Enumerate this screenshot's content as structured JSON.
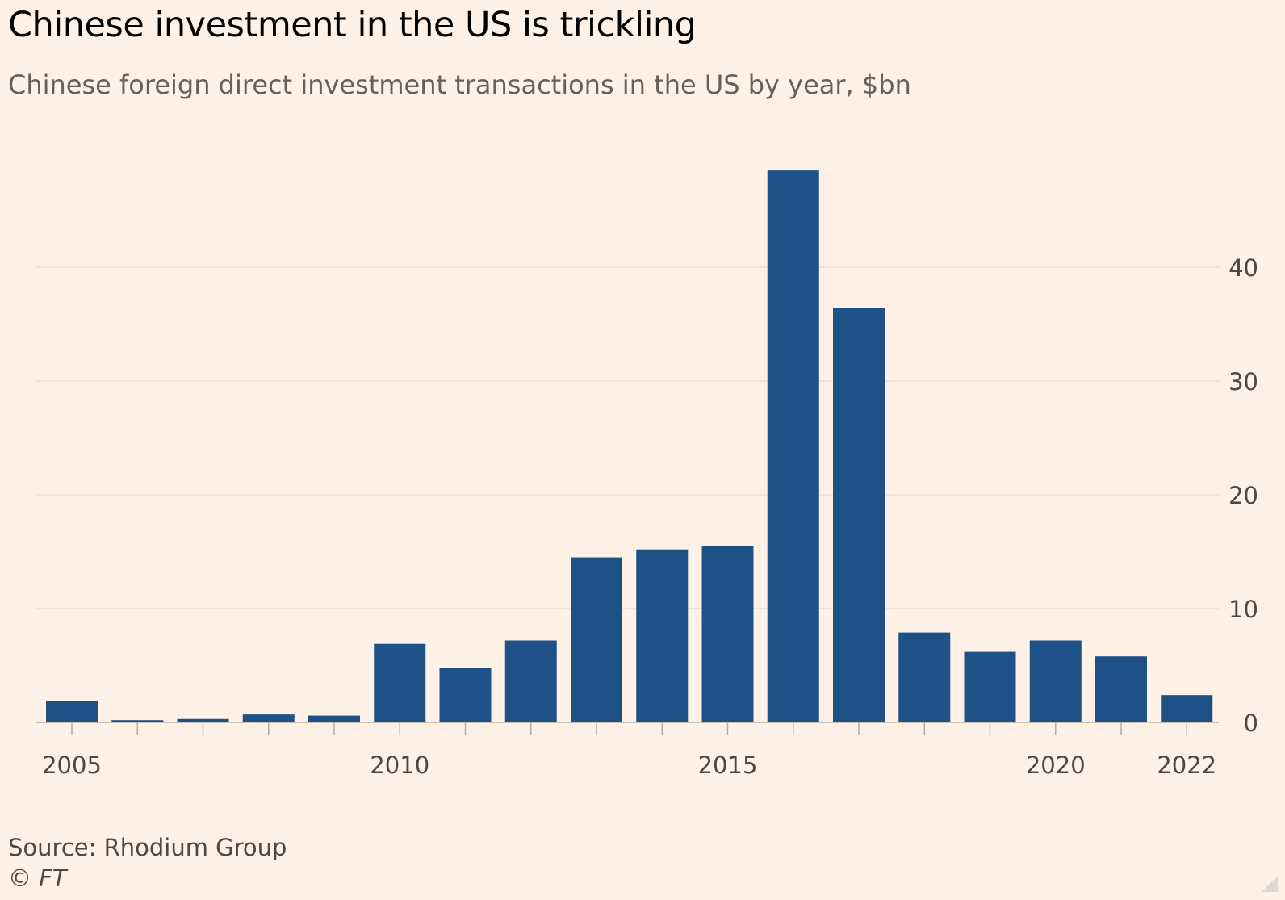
{
  "title": "Chinese investment in the US is trickling",
  "subtitle": "Chinese foreign direct investment transactions in the US by year, $bn",
  "source": "Source: Rhodium Group",
  "credit": "© FT",
  "colors": {
    "background": "#FFF1E5",
    "bar": "#1F5189",
    "grid": "#E9DED5",
    "axis": "#B8ADA4",
    "tick_label": "#4d4845"
  },
  "chart_data": {
    "type": "bar",
    "x": [
      2005,
      2006,
      2007,
      2008,
      2009,
      2010,
      2011,
      2012,
      2013,
      2014,
      2015,
      2016,
      2017,
      2018,
      2019,
      2020,
      2021,
      2022
    ],
    "values": [
      1.9,
      0.2,
      0.3,
      0.7,
      0.6,
      6.9,
      4.8,
      7.2,
      14.5,
      15.2,
      15.5,
      48.5,
      36.4,
      7.9,
      6.2,
      7.2,
      5.8,
      2.4
    ],
    "xlabel": "",
    "ylabel": "",
    "ylim": [
      0,
      50
    ],
    "yticks": [
      0,
      10,
      20,
      30,
      40
    ],
    "xtick_labels": [
      "2005",
      "2010",
      "2015",
      "2020",
      "2022"
    ],
    "y_axis_position": "right",
    "grid": true
  }
}
